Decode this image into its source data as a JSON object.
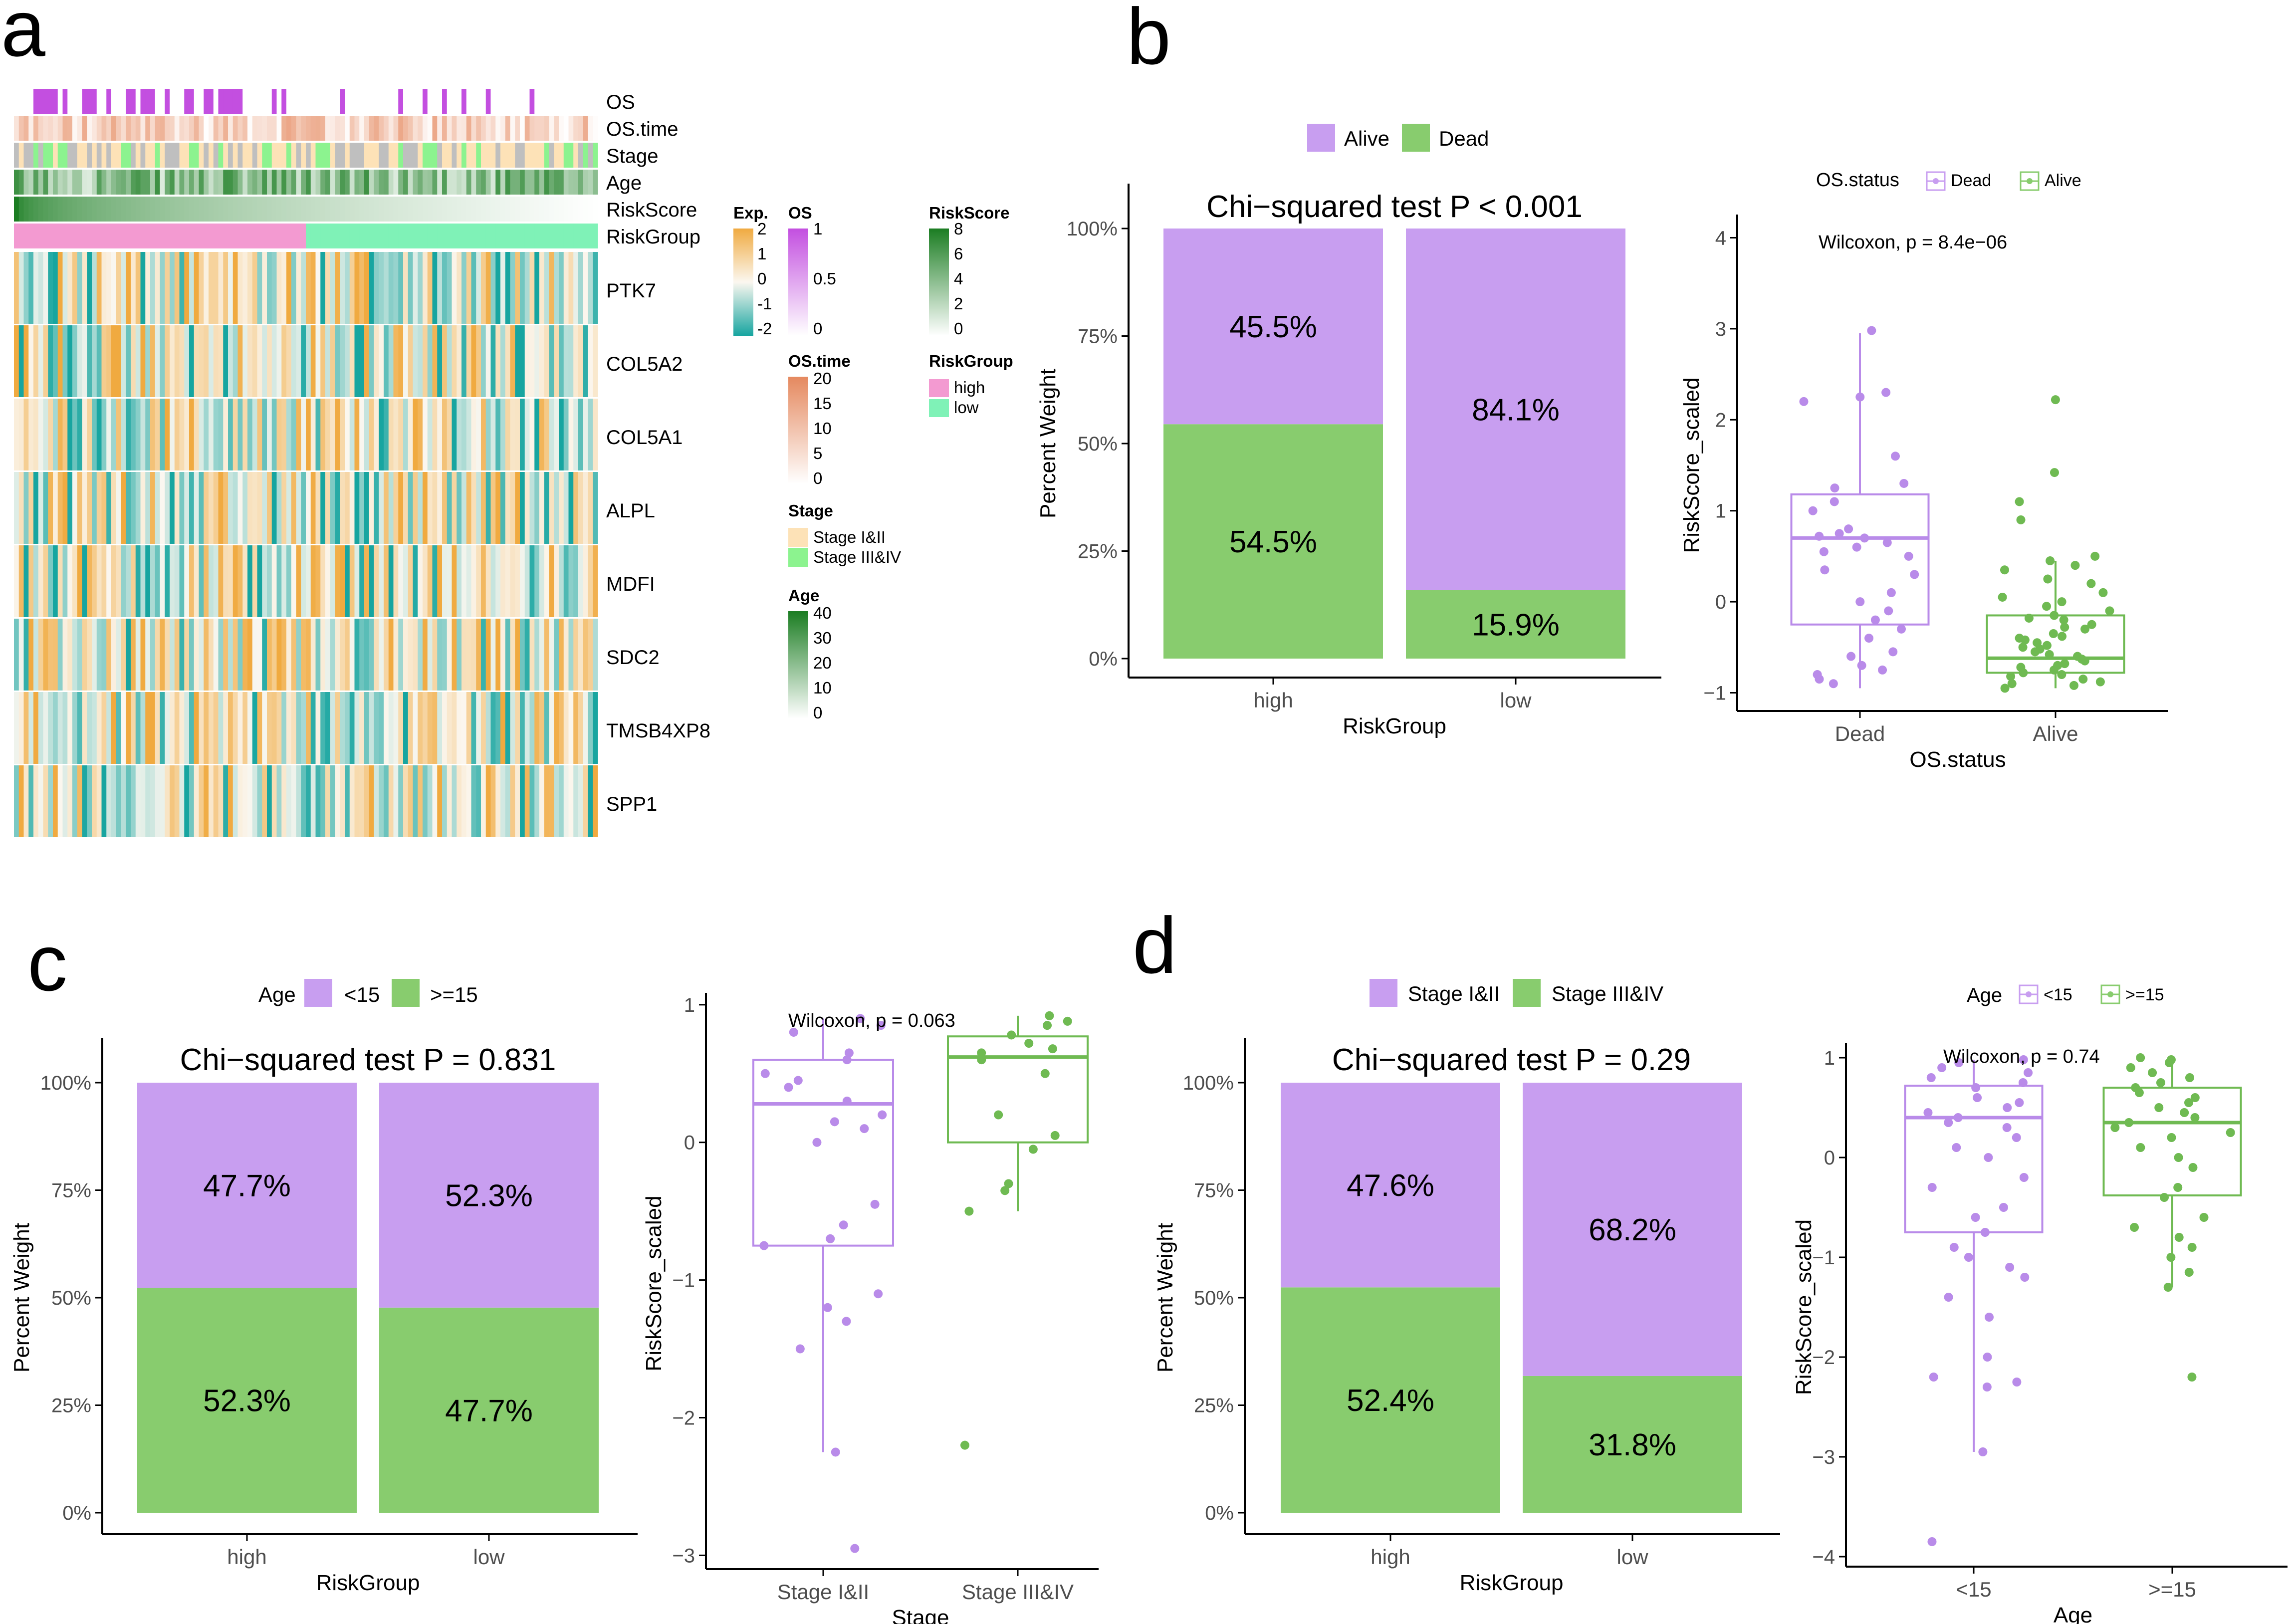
{
  "colors": {
    "purple": "#c89ef0",
    "green": "#88cc6e",
    "purple_dark": "#b98be9",
    "green_dark": "#6fba52",
    "heat_low": "#17a5a0",
    "heat_mid": "#fbf7f0",
    "heat_high": "#f0aa40",
    "os_fill": "#c34fe0",
    "riskgroup_high": "#f39ad1",
    "riskgroup_low": "#7ff2b7",
    "stage_early": "#fde2b7",
    "stage_late": "#8cf38f",
    "age_dark": "#1b7d22",
    "ostime_dark": "#e5895f"
  },
  "panel_labels": {
    "a": "a",
    "b": "b",
    "c": "c",
    "d": "d"
  },
  "chart_data": [
    {
      "id": "a",
      "type": "heatmap",
      "annotation_rows": [
        "OS",
        "OS.time",
        "Stage",
        "Age",
        "RiskScore",
        "RiskGroup"
      ],
      "genes": [
        "PTK7",
        "COL5A2",
        "COL5A1",
        "ALPL",
        "MDFI",
        "SDC2",
        "TMSB4XP8",
        "SPP1"
      ],
      "legends": {
        "exp": {
          "title": "Exp.",
          "ticks": [
            "2",
            "1",
            "0",
            "-1",
            "-2"
          ]
        },
        "os": {
          "title": "OS",
          "ticks": [
            "1",
            "0.5",
            "0"
          ]
        },
        "riskscore": {
          "title": "RiskScore",
          "ticks": [
            "8",
            "6",
            "4",
            "2",
            "0"
          ]
        },
        "ostime": {
          "title": "OS.time",
          "ticks": [
            "20",
            "15",
            "10",
            "5",
            "0"
          ]
        },
        "riskgroup": {
          "title": "RiskGroup",
          "items": [
            "high",
            "low"
          ]
        },
        "stage": {
          "title": "Stage",
          "items": [
            "Stage I&II",
            "Stage III&IV"
          ]
        },
        "age": {
          "title": "Age",
          "ticks": [
            "40",
            "30",
            "20",
            "10",
            "0"
          ]
        }
      }
    },
    {
      "id": "b_bar",
      "type": "bar",
      "title": "Chi−squared test P < 0.001",
      "xlabel": "RiskGroup",
      "ylabel": "Percent Weight",
      "categories": [
        "high",
        "low"
      ],
      "legend_items": [
        "Alive",
        "Dead"
      ],
      "series": [
        {
          "name": "Dead",
          "values": [
            54.5,
            15.9
          ],
          "labels": [
            "54.5%",
            "15.9%"
          ]
        },
        {
          "name": "Alive",
          "values": [
            45.5,
            84.1
          ],
          "labels": [
            "45.5%",
            "84.1%"
          ]
        }
      ],
      "yticks": [
        "0%",
        "25%",
        "50%",
        "75%",
        "100%"
      ],
      "ylim": [
        0,
        100
      ]
    },
    {
      "id": "b_box",
      "type": "scatter",
      "subtype": "boxplot",
      "legend_title": "OS.status",
      "legend_items": [
        "Dead",
        "Alive"
      ],
      "annotation": "Wilcoxon, p = 8.4e−06",
      "xlabel": "OS.status",
      "ylabel": "RiskScore_scaled",
      "categories": [
        "Dead",
        "Alive"
      ],
      "yticks": [
        "−1",
        "0",
        "1",
        "2",
        "3",
        "4"
      ],
      "ylim": [
        -1.2,
        4.2
      ],
      "boxes": [
        {
          "q1": -0.25,
          "median": 0.7,
          "q3": 1.18,
          "wmin": -0.95,
          "wmax": 2.95
        },
        {
          "q1": -0.78,
          "median": -0.62,
          "q3": -0.15,
          "wmin": -0.95,
          "wmax": 0.45
        }
      ],
      "points": [
        [
          -0.9,
          -0.85,
          -0.8,
          -0.75,
          -0.7,
          -0.55,
          -0.4,
          -0.3,
          -0.2,
          -0.1,
          0.0,
          0.1,
          0.3,
          0.35,
          0.5,
          0.6,
          0.7,
          0.72,
          0.75,
          0.8,
          1.0,
          1.1,
          1.25,
          1.3,
          1.6,
          2.2,
          2.25,
          2.3,
          2.98,
          0.65,
          -0.6,
          0.55
        ],
        [
          -0.95,
          -0.92,
          -0.9,
          -0.88,
          -0.85,
          -0.82,
          -0.8,
          -0.78,
          -0.75,
          -0.72,
          -0.7,
          -0.68,
          -0.65,
          -0.63,
          -0.6,
          -0.58,
          -0.55,
          -0.52,
          -0.5,
          -0.48,
          -0.45,
          -0.42,
          -0.4,
          -0.38,
          -0.35,
          -0.3,
          -0.28,
          -0.25,
          -0.2,
          -0.18,
          -0.15,
          -0.1,
          -0.05,
          0.0,
          0.05,
          0.1,
          0.2,
          0.25,
          0.35,
          0.4,
          0.45,
          0.5,
          0.9,
          1.1,
          1.42,
          2.22
        ]
      ]
    },
    {
      "id": "c_bar",
      "type": "bar",
      "title": "Chi−squared test P = 0.831",
      "xlabel": "RiskGroup",
      "ylabel": "Percent Weight",
      "legend_title": "Age",
      "legend_items": [
        "<15",
        ">=15"
      ],
      "categories": [
        "high",
        "low"
      ],
      "series": [
        {
          "name": ">=15",
          "values": [
            52.3,
            47.7
          ],
          "labels": [
            "52.3%",
            "47.7%"
          ]
        },
        {
          "name": "<15",
          "values": [
            47.7,
            52.3
          ],
          "labels": [
            "47.7%",
            "52.3%"
          ]
        }
      ],
      "yticks": [
        "0%",
        "25%",
        "50%",
        "75%",
        "100%"
      ],
      "ylim": [
        0,
        100
      ]
    },
    {
      "id": "c_box",
      "type": "scatter",
      "subtype": "boxplot",
      "annotation": "Wilcoxon, p = 0.063",
      "xlabel": "Stage",
      "ylabel": "RiskScore_scaled",
      "categories": [
        "Stage I&II",
        "Stage III&IV"
      ],
      "yticks": [
        "−3",
        "−2",
        "−1",
        "0",
        "1"
      ],
      "ylim": [
        -3.1,
        1.05
      ],
      "boxes": [
        {
          "q1": -0.75,
          "median": 0.28,
          "q3": 0.6,
          "wmin": -2.25,
          "wmax": 0.9
        },
        {
          "q1": 0.0,
          "median": 0.62,
          "q3": 0.77,
          "wmin": -0.5,
          "wmax": 0.92
        }
      ],
      "points": [
        [
          0.9,
          0.85,
          0.8,
          0.65,
          0.6,
          0.5,
          0.45,
          0.4,
          0.3,
          0.2,
          0.15,
          0.1,
          0.0,
          -0.45,
          -0.6,
          -0.7,
          -0.75,
          -1.1,
          -1.2,
          -1.3,
          -1.5,
          -2.25,
          -2.95
        ],
        [
          0.92,
          0.88,
          0.85,
          0.78,
          0.72,
          0.68,
          0.65,
          0.6,
          0.5,
          0.2,
          0.05,
          -0.05,
          -0.3,
          -0.35,
          -0.5,
          -2.2
        ]
      ]
    },
    {
      "id": "d_bar",
      "type": "bar",
      "title": "Chi−squared test P = 0.29",
      "xlabel": "RiskGroup",
      "ylabel": "Percent Weight",
      "legend_items": [
        "Stage I&II",
        "Stage III&IV"
      ],
      "categories": [
        "high",
        "low"
      ],
      "series": [
        {
          "name": "Stage III&IV",
          "values": [
            52.4,
            31.8
          ],
          "labels": [
            "52.4%",
            "31.8%"
          ]
        },
        {
          "name": "Stage I&II",
          "values": [
            47.6,
            68.2
          ],
          "labels": [
            "47.6%",
            "68.2%"
          ]
        }
      ],
      "yticks": [
        "0%",
        "25%",
        "50%",
        "75%",
        "100%"
      ],
      "ylim": [
        0,
        100
      ]
    },
    {
      "id": "d_box",
      "type": "scatter",
      "subtype": "boxplot",
      "legend_title": "Age",
      "legend_items": [
        "<15",
        ">=15"
      ],
      "annotation": "Wilcoxon, p = 0.74",
      "xlabel": "Age",
      "ylabel": "RiskScore_scaled",
      "categories": [
        "<15",
        ">=15"
      ],
      "yticks": [
        "−4",
        "−3",
        "−2",
        "−1",
        "0",
        "1"
      ],
      "ylim": [
        -4.1,
        1.1
      ],
      "boxes": [
        {
          "q1": -0.75,
          "median": 0.4,
          "q3": 0.72,
          "wmin": -2.95,
          "wmax": 0.98
        },
        {
          "q1": -0.38,
          "median": 0.35,
          "q3": 0.7,
          "wmin": -1.3,
          "wmax": 1.0
        }
      ],
      "points": [
        [
          0.98,
          0.95,
          0.9,
          0.85,
          0.8,
          0.75,
          0.7,
          0.6,
          0.55,
          0.5,
          0.45,
          0.4,
          0.35,
          0.3,
          0.2,
          0.1,
          0.0,
          -0.2,
          -0.3,
          -0.5,
          -0.6,
          -0.75,
          -0.9,
          -1.0,
          -1.1,
          -1.2,
          -1.4,
          -1.6,
          -2.0,
          -2.2,
          -2.3,
          -2.25,
          -2.95,
          -3.85
        ],
        [
          1.0,
          0.98,
          0.95,
          0.9,
          0.85,
          0.8,
          0.75,
          0.7,
          0.65,
          0.6,
          0.55,
          0.5,
          0.45,
          0.4,
          0.35,
          0.3,
          0.25,
          0.2,
          0.1,
          0.0,
          -0.1,
          -0.3,
          -0.4,
          -0.6,
          -0.7,
          -0.8,
          -0.9,
          -1.0,
          -1.15,
          -1.3,
          -2.2
        ]
      ]
    }
  ]
}
